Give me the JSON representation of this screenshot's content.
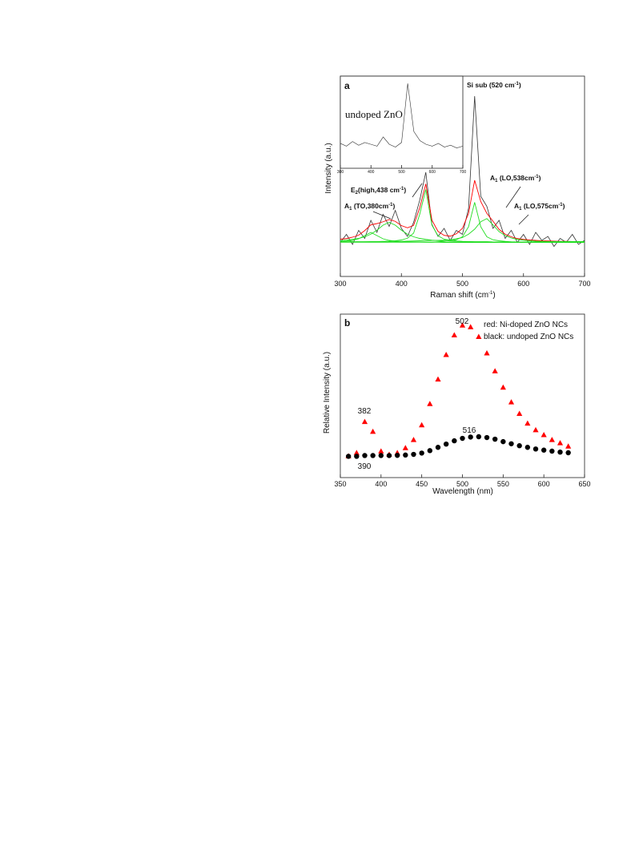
{
  "chart_data": [
    {
      "type": "line",
      "panel_label": "a",
      "xlabel": [
        "Raman shift (cm",
        "-1",
        ")"
      ],
      "ylabel": "Intensity (a.u.)",
      "x": [
        300,
        310,
        320,
        330,
        340,
        350,
        360,
        370,
        380,
        390,
        400,
        410,
        420,
        430,
        440,
        450,
        460,
        470,
        480,
        490,
        500,
        510,
        520,
        530,
        540,
        550,
        560,
        570,
        580,
        590,
        600,
        610,
        620,
        630,
        640,
        650,
        660,
        670,
        680,
        690,
        700
      ],
      "xlim": [
        300,
        700
      ],
      "xticks": [
        300,
        400,
        500,
        600,
        700
      ],
      "ylim": [
        0,
        100
      ],
      "series": [
        {
          "color": "#333333",
          "values": [
            17,
            21,
            16,
            23,
            19,
            28,
            22,
            31,
            25,
            33,
            24,
            20,
            27,
            38,
            52,
            26,
            20,
            24,
            18,
            23,
            21,
            34,
            90,
            40,
            35,
            24,
            28,
            19,
            23,
            17,
            21,
            16,
            22,
            18,
            20,
            15,
            19,
            17,
            21,
            16,
            18
          ]
        },
        {
          "color": "#ff0000",
          "values": [
            18.6,
            18.9,
            19.6,
            20.6,
            22.9,
            25.8,
            26.4,
            27.3,
            28.4,
            27.5,
            25.4,
            24.3,
            25.5,
            34.2,
            46.2,
            28.1,
            22.5,
            20.5,
            20.1,
            21.3,
            24,
            31.5,
            48,
            37.4,
            31.5,
            27.6,
            23.5,
            21.1,
            19.8,
            18.9,
            18.5,
            18.2,
            18,
            17.8,
            17.7,
            17.6,
            17.5,
            17.5,
            17.4,
            17.4,
            17.3
          ]
        },
        {
          "color": "#22dd22",
          "values": [
            17.4,
            17.6,
            18,
            18.8,
            20.4,
            22,
            20.4,
            18.8,
            18,
            17.6,
            17.4,
            17.3,
            17.2,
            17.2,
            17.1,
            17.1,
            17.1,
            17,
            17,
            17,
            17,
            17,
            17,
            17,
            17,
            17,
            17,
            17,
            17,
            17,
            17,
            17,
            17,
            17,
            17,
            17,
            17,
            17,
            17,
            17,
            17
          ]
        },
        {
          "color": "#22dd22",
          "values": [
            17.9,
            18.1,
            18.5,
            19,
            19.8,
            21.1,
            23.1,
            25.6,
            27,
            25.6,
            23.1,
            21.1,
            19.8,
            19,
            18.5,
            18.1,
            17.9,
            17.7,
            17.6,
            17.5,
            17.4,
            17.4,
            17.3,
            17.3,
            17.3,
            17.2,
            17.2,
            17.2,
            17.2,
            17.2,
            17.2,
            17.1,
            17.1,
            17.1,
            17.1,
            17.1,
            17.1,
            17.1,
            17.1,
            17.1,
            17.1
          ]
        },
        {
          "color": "#22dd22",
          "values": [
            17.2,
            17.2,
            17.3,
            17.3,
            17.3,
            17.4,
            17.4,
            17.5,
            17.6,
            17.8,
            18.2,
            19.1,
            21.6,
            31,
            43.4,
            25.6,
            20.3,
            18.6,
            18,
            17.7,
            17.5,
            17.4,
            17.3,
            17.3,
            17.3,
            17.2,
            17.2,
            17.2,
            17.2,
            17.2,
            17.2,
            17.2,
            17.2,
            17.2,
            17.2,
            17.2,
            17.2,
            17.2,
            17.2,
            17.2,
            17.2
          ]
        },
        {
          "color": "#22dd22",
          "values": [
            17.1,
            17.1,
            17.1,
            17.1,
            17.1,
            17.1,
            17.1,
            17.1,
            17.1,
            17.1,
            17.1,
            17.1,
            17.1,
            17.1,
            17.1,
            17.1,
            17.3,
            17.5,
            17.8,
            18.3,
            19.8,
            24.8,
            37,
            24.8,
            19.8,
            18.3,
            17.8,
            17.5,
            17.3,
            17.2,
            17.1,
            17.1,
            17.1,
            17.1,
            17.1,
            17.1,
            17.1,
            17.1,
            17.1,
            17.1,
            17.1
          ]
        },
        {
          "color": "#22dd22",
          "values": [
            17.3,
            17.3,
            17.3,
            17.3,
            17.3,
            17.3,
            17.3,
            17.3,
            17.3,
            17.3,
            17.5,
            17.6,
            17.7,
            17.8,
            17.9,
            18,
            18,
            18.1,
            18.3,
            18.8,
            19.4,
            21.1,
            23.6,
            27.3,
            28.9,
            25.8,
            22.4,
            20.4,
            19.2,
            18.5,
            18.1,
            17.8,
            17.6,
            17.5,
            17.4,
            17.4,
            17.4,
            17.4,
            17.4,
            17.4,
            17.4
          ]
        }
      ],
      "annotations": [
        [
          "Si sub (520 cm",
          "-1",
          ")"
        ],
        [
          "E",
          "2",
          "(high,438 cm",
          "-1",
          ")"
        ],
        [
          "A",
          "1",
          " (TO,380cm",
          "-1",
          ")"
        ],
        [
          "A",
          "1",
          " (LO,538cm",
          "-1",
          ")"
        ],
        [
          "A",
          "1",
          " (LO,575cm",
          "-1",
          ")"
        ]
      ]
    },
    {
      "type": "line",
      "label": "undoped ZnO",
      "x": [
        300,
        320,
        340,
        360,
        380,
        400,
        420,
        440,
        460,
        480,
        500,
        520,
        540,
        560,
        580,
        600,
        620,
        640,
        660,
        680,
        700
      ],
      "xlim": [
        300,
        700
      ],
      "xticks": [
        300,
        400,
        500,
        600,
        700
      ],
      "ylim": [
        0,
        100
      ],
      "series": [
        {
          "color": "#333333",
          "values": [
            27,
            24,
            29,
            25,
            28,
            26,
            24,
            34,
            26,
            23,
            28,
            92,
            40,
            30,
            26,
            24,
            27,
            23,
            25,
            22,
            24
          ]
        }
      ]
    },
    {
      "type": "scatter",
      "panel_label": "b",
      "xlabel": "Wavelength (nm)",
      "ylabel": "Relative Intensity (a.u.)",
      "x": [
        360,
        370,
        380,
        390,
        400,
        410,
        420,
        430,
        440,
        450,
        460,
        470,
        480,
        490,
        500,
        510,
        520,
        530,
        540,
        550,
        560,
        570,
        580,
        590,
        600,
        610,
        620,
        630
      ],
      "xlim": [
        350,
        650
      ],
      "xticks": [
        350,
        400,
        450,
        500,
        550,
        600,
        650
      ],
      "ylim": [
        0,
        100
      ],
      "series": [
        {
          "color": "#ff0000",
          "marker": "triangle",
          "values": [
            13,
            15,
            34,
            28,
            16,
            14,
            15,
            18,
            23,
            32,
            45,
            60,
            75,
            87,
            93,
            92,
            86,
            76,
            65,
            55,
            46,
            39,
            33,
            29,
            26,
            23,
            21,
            19
          ]
        },
        {
          "color": "#000000",
          "marker": "circle",
          "values": [
            13,
            13,
            13.5,
            13.5,
            13.5,
            13.5,
            13.6,
            13.8,
            14.2,
            15,
            16.5,
            18.5,
            20.5,
            22.5,
            24,
            24.8,
            25,
            24.5,
            23.5,
            22,
            20.7,
            19.5,
            18.5,
            17.5,
            16.8,
            16.2,
            15.6,
            15.2
          ]
        }
      ],
      "legend": [
        "red: Ni-doped ZnO NCs",
        "black: undoped ZnO NCs"
      ],
      "annotations": [
        382,
        502,
        516,
        390
      ]
    }
  ]
}
